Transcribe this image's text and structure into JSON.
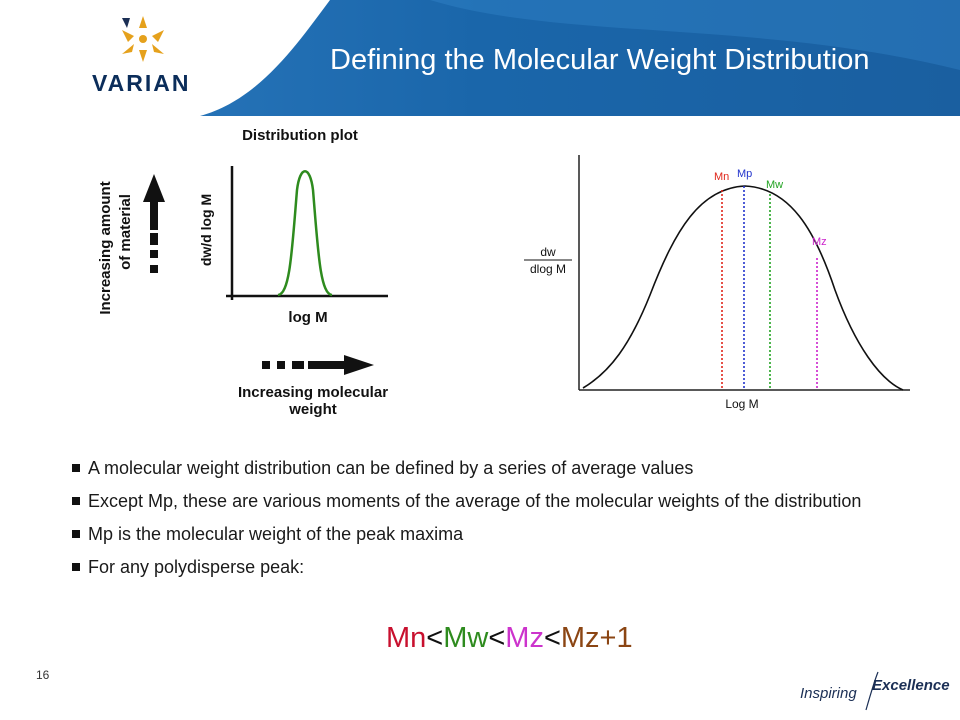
{
  "header": {
    "title": "Defining the Molecular Weight Distribution",
    "brand": "VARIAN",
    "colors": {
      "band": "#1565a8",
      "band_light": "#3f86c6",
      "logo_gold": "#e5a11c",
      "logo_text": "#0b2d5a"
    }
  },
  "left_diagram": {
    "plot_title": "Distribution plot",
    "y_axis_label": "dw/d log M",
    "x_axis_label": "log M",
    "vertical_arrow_label_line1": "Increasing amount",
    "vertical_arrow_label_line2": "of material",
    "horizontal_arrow_label_line1": "Increasing molecular",
    "horizontal_arrow_label_line2": "weight",
    "curve_color": "#2e8b1e"
  },
  "right_diagram": {
    "y_label_numerator": "dw",
    "y_label_denominator": "dlog M",
    "x_label": "Log M",
    "markers": [
      {
        "label": "Mn",
        "color": "#e0261b"
      },
      {
        "label": "Mp",
        "color": "#2233cc"
      },
      {
        "label": "Mw",
        "color": "#22a322"
      },
      {
        "label": "Mz",
        "color": "#cc22cc"
      }
    ]
  },
  "bullets": [
    "A molecular weight distribution can be defined by a series of average values",
    "Except Mp, these are various moments of the average of the molecular weights of the distribution",
    "Mp is the molecular weight of the peak maxima",
    "For any polydisperse peak:"
  ],
  "formula": {
    "parts": [
      {
        "text": "Mn",
        "color": "#c8102e"
      },
      {
        "text": "<",
        "color": "#111111"
      },
      {
        "text": "Mw",
        "color": "#2e8b1e"
      },
      {
        "text": "<",
        "color": "#111111"
      },
      {
        "text": "Mz",
        "color": "#cc33cc"
      },
      {
        "text": "<",
        "color": "#111111"
      },
      {
        "text": "Mz+1",
        "color": "#8b4513"
      }
    ]
  },
  "footer": {
    "page_number": "16",
    "tagline_1": "Inspiring",
    "tagline_2": "Excellence"
  }
}
